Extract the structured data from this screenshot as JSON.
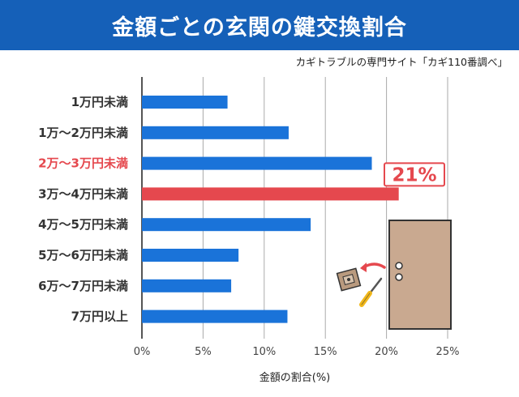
{
  "header": {
    "title": "金額ごとの玄関の鍵交換割合",
    "subtitle": "カギトラブルの専門サイト「カギ110番調べ」"
  },
  "colors": {
    "bar": "#1a73d9",
    "highlight_bar": "#e5484e",
    "highlight_label": "#e5484e",
    "label": "#333333",
    "title_bg": "#1560b8"
  },
  "chart_data": {
    "type": "bar",
    "orientation": "horizontal",
    "categories": [
      "1万円未満",
      "1万～2万円未満",
      "2万～3万円未満",
      "3万～4万円未満",
      "4万～5万円未満",
      "5万～6万円未満",
      "6万～7万円未満",
      "7万円以上"
    ],
    "values": [
      7.0,
      12.0,
      18.8,
      21.0,
      13.8,
      7.9,
      7.3,
      11.9
    ],
    "highlight_category": "3万～4万円未満",
    "highlight_label_category": "2万～3万円未満",
    "callout": "21%",
    "xlabel": "金額の割合(%)",
    "xlim": [
      0,
      25
    ],
    "xticks": [
      0,
      5,
      10,
      15,
      20,
      25
    ],
    "xtick_labels": [
      "0%",
      "5%",
      "10%",
      "15%",
      "20%",
      "25%"
    ],
    "grid": "vertical"
  },
  "illustration": {
    "door": "door-icon",
    "lock": "lock-cylinder-icon",
    "screwdriver": "screwdriver-icon",
    "arrow": "arrow-icon"
  }
}
